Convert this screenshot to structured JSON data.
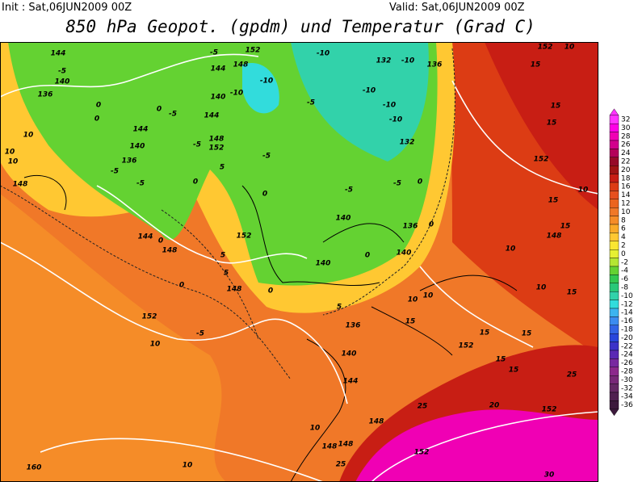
{
  "header": {
    "init": "Init : Sat,06JUN2009  00Z",
    "valid": "Valid: Sat,06JUN2009  00Z",
    "title": "850 hPa Geopot. (gpdm) und Temperatur (Grad C)"
  },
  "colorbar": {
    "levels": [
      32,
      30,
      28,
      26,
      24,
      22,
      20,
      18,
      16,
      14,
      12,
      10,
      8,
      6,
      4,
      2,
      0,
      -2,
      -4,
      -6,
      -8,
      -10,
      -12,
      -14,
      -16,
      -18,
      -20,
      -22,
      -24,
      -26,
      -28,
      -30,
      -32,
      -34,
      -36
    ],
    "colors": [
      "#ff33ff",
      "#ff00e6",
      "#f000b4",
      "#d2008c",
      "#b4005a",
      "#960a28",
      "#a01414",
      "#c81e14",
      "#dc3c14",
      "#e6501e",
      "#eb641e",
      "#f07828",
      "#f58c28",
      "#faaa28",
      "#ffc832",
      "#fae632",
      "#e6f032",
      "#b4e632",
      "#64d232",
      "#32c850",
      "#28c878",
      "#32d2aa",
      "#32dcdc",
      "#3cb4f0",
      "#3c8cf0",
      "#3264e6",
      "#2846dc",
      "#3c32c8",
      "#5a28b4",
      "#7828a0",
      "#8c288c",
      "#782878",
      "#642864",
      "#502050",
      "#3c1a3c"
    ]
  },
  "contour_labels": [
    "144",
    "-5",
    "140",
    "136",
    "0",
    "0",
    "144",
    "-5",
    "0",
    "144",
    "10",
    "10",
    "10",
    "140",
    "136",
    "-5",
    "-5",
    "148",
    "152",
    "-5",
    "5",
    "0",
    "148",
    "0",
    "-5",
    "152",
    "144",
    "148",
    "0",
    "5",
    "5",
    "148",
    "0",
    "0",
    "152",
    "10",
    "-5",
    "140",
    "140",
    "0",
    "140",
    "136",
    "0",
    "-5",
    "-5",
    "0",
    "132",
    "-10",
    "-10",
    "-10",
    "132",
    "-10",
    "136",
    "-10",
    "-5",
    "-10",
    "-10",
    "140",
    "148",
    "152",
    "144",
    "-5",
    "10",
    "10",
    "5",
    "136",
    "140",
    "144",
    "15",
    "15",
    "15",
    "152",
    "15",
    "15",
    "20",
    "25",
    "152",
    "25",
    "148",
    "152",
    "148",
    "148",
    "25",
    "10",
    "10",
    "160",
    "30",
    "15",
    "152",
    "15",
    "15",
    "152",
    "15",
    "15",
    "148",
    "10",
    "10",
    "15",
    "10",
    "10"
  ]
}
